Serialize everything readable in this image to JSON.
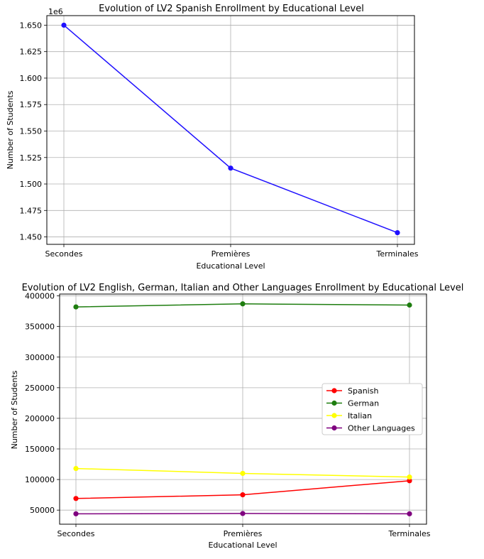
{
  "chart_data": [
    {
      "type": "line",
      "title": "Evolution of LV2 Spanish Enrollment by Educational Level",
      "xlabel": "Educational Level",
      "ylabel": "Number of Students",
      "offset_label": "1e6",
      "categories": [
        "Secondes",
        "Premières",
        "Terminales"
      ],
      "y_ticks": [
        "1.450",
        "1.475",
        "1.500",
        "1.525",
        "1.550",
        "1.575",
        "1.600",
        "1.625",
        "1.650"
      ],
      "ylim": [
        1443000,
        1659000
      ],
      "grid": true,
      "series": [
        {
          "values": [
            1650000,
            1515000,
            1454000
          ],
          "color": "#1f10ff"
        }
      ]
    },
    {
      "type": "line",
      "title": "Evolution of LV2 English, German, Italian and Other Languages Enrollment by Educational Level",
      "xlabel": "Educational Level",
      "ylabel": "Number of Students",
      "categories": [
        "Secondes",
        "Premières",
        "Terminales"
      ],
      "y_ticks": [
        "50000",
        "100000",
        "150000",
        "200000",
        "250000",
        "300000",
        "350000",
        "400000"
      ],
      "ylim": [
        27000,
        403000
      ],
      "grid": true,
      "legend_position": "center-right",
      "series": [
        {
          "name": "Spanish",
          "values": [
            69000,
            75000,
            98000
          ],
          "color": "#ff0000"
        },
        {
          "name": "German",
          "values": [
            382000,
            387000,
            385000
          ],
          "color": "#1e7d0f"
        },
        {
          "name": "Italian",
          "values": [
            118000,
            110000,
            104000
          ],
          "color": "#ffff00"
        },
        {
          "name": "Other Languages",
          "values": [
            44000,
            44500,
            44000
          ],
          "color": "#7f007f"
        }
      ]
    }
  ]
}
